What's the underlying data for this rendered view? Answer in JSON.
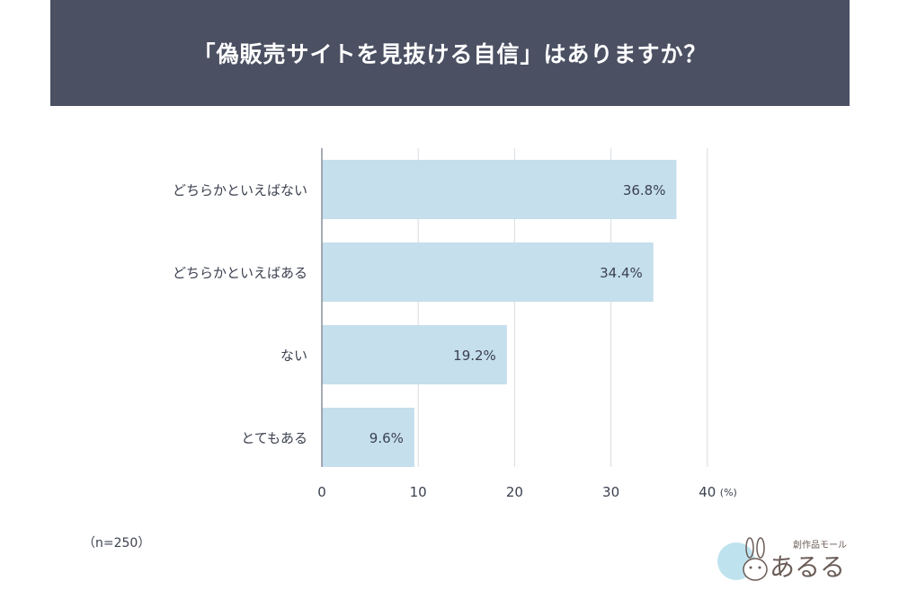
{
  "header": {
    "title": "「偽販売サイトを見抜ける自信」はありますか？"
  },
  "chart_data": {
    "type": "bar",
    "orientation": "horizontal",
    "categories": [
      "どちらかといえばない",
      "どちらかといえばある",
      "ない",
      "とてもある"
    ],
    "values": [
      36.8,
      34.4,
      19.2,
      9.6
    ],
    "value_labels": [
      "36.8%",
      "34.4%",
      "19.2%",
      "9.6%"
    ],
    "xlim": [
      0,
      40
    ],
    "xticks": [
      0,
      10,
      20,
      30,
      40
    ],
    "x_unit": "(%)",
    "grid": true,
    "bar_color": "#c5dfec",
    "grid_color": "#d9dce2"
  },
  "footer": {
    "sample_size": "（n=250）"
  },
  "logo": {
    "subtitle": "創作品モール",
    "name": "あるる",
    "badge": "あ"
  }
}
